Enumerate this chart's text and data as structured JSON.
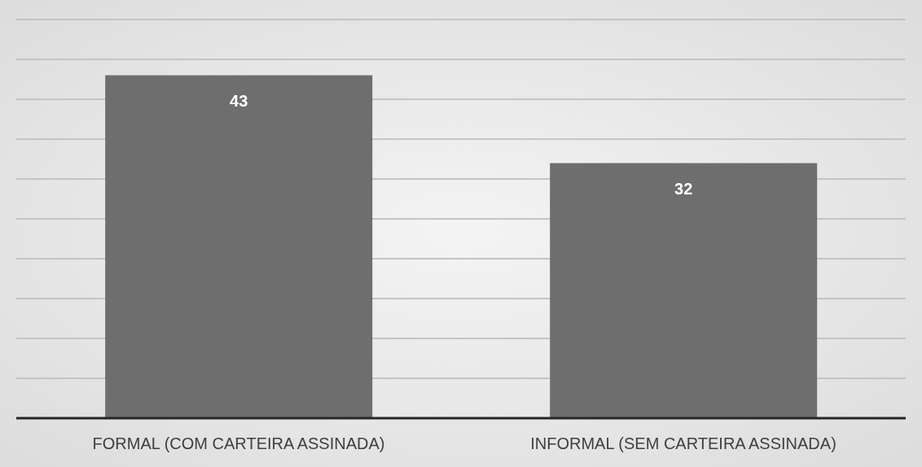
{
  "chart_data": {
    "type": "bar",
    "categories": [
      "FORMAL (COM CARTEIRA ASSINADA)",
      "INFORMAL (SEM CARTEIRA ASSINADA)"
    ],
    "values": [
      43,
      32
    ],
    "color": "#6e6e6e",
    "data_labels": true,
    "grid": "y",
    "tick_labels": "x",
    "ylim": [
      0,
      50
    ]
  }
}
